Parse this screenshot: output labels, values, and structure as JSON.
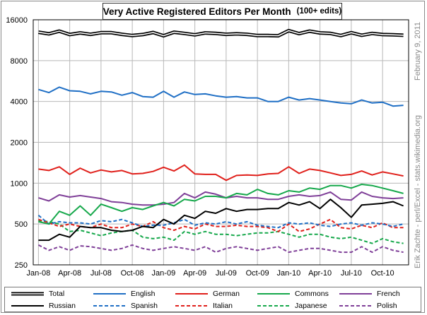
{
  "title": "Very Active Registered Editors  Per Month",
  "subtitle": "(100+ edits)",
  "side_date": "February 9, 2011",
  "credit": "Erik Zachte  -  perl/Excel  -  stats.wikimedia.org",
  "chart_data": {
    "type": "line",
    "yscale": "log",
    "ylim": [
      250,
      16000
    ],
    "y_ticks": [
      250,
      500,
      1000,
      2000,
      4000,
      8000,
      16000
    ],
    "y_tick_labels": [
      "250",
      "500",
      "1000",
      "2000",
      "4000",
      "8000",
      "16000"
    ],
    "x": [
      "Jan-08",
      "Feb-08",
      "Mar-08",
      "Apr-08",
      "May-08",
      "Jun-08",
      "Jul-08",
      "Aug-08",
      "Sep-08",
      "Oct-08",
      "Nov-08",
      "Dec-08",
      "Jan-09",
      "Feb-09",
      "Mar-09",
      "Apr-09",
      "May-09",
      "Jun-09",
      "Jul-09",
      "Aug-09",
      "Sep-09",
      "Oct-09",
      "Nov-09",
      "Dec-09",
      "Jan-10",
      "Feb-10",
      "Mar-10",
      "Apr-10",
      "May-10",
      "Jun-10",
      "Jul-10",
      "Aug-10",
      "Sep-10",
      "Oct-10",
      "Nov-10",
      "Dec-10"
    ],
    "x_tick_labels": [
      "Jan-08",
      "Apr-08",
      "Jul-08",
      "Oct-08",
      "Jan-09",
      "Apr-09",
      "Jul-09",
      "Oct-09",
      "Jan-10",
      "Apr-10",
      "Jul-10",
      "Oct-10"
    ],
    "grid": true,
    "legend_position": "bottom",
    "series": [
      {
        "name": "Total",
        "color": "#000000",
        "style": "double",
        "values": [
          12950,
          12600,
          13200,
          12450,
          12800,
          12500,
          12850,
          12850,
          12500,
          12250,
          12450,
          12900,
          12200,
          12950,
          12700,
          12400,
          12800,
          12700,
          12500,
          12600,
          12500,
          12250,
          12250,
          12200,
          13300,
          12650,
          13200,
          12800,
          12700,
          12250,
          12850,
          12300,
          12700,
          12450,
          12400,
          12300
        ]
      },
      {
        "name": "English",
        "color": "#1f6fc5",
        "style": "solid",
        "values": [
          4900,
          4650,
          5100,
          4800,
          4750,
          4550,
          4750,
          4700,
          4450,
          4650,
          4350,
          4300,
          4750,
          4300,
          4700,
          4500,
          4550,
          4400,
          4300,
          4350,
          4250,
          4250,
          4000,
          4000,
          4300,
          4100,
          4200,
          4100,
          4000,
          3900,
          3850,
          4100,
          3900,
          3950,
          3700,
          3750
        ]
      },
      {
        "name": "German",
        "color": "#e0201b",
        "style": "solid",
        "values": [
          1270,
          1240,
          1320,
          1160,
          1290,
          1190,
          1250,
          1210,
          1240,
          1170,
          1180,
          1220,
          1310,
          1230,
          1360,
          1170,
          1160,
          1160,
          1050,
          1140,
          1150,
          1140,
          1170,
          1180,
          1320,
          1180,
          1270,
          1240,
          1190,
          1140,
          1160,
          1230,
          1150,
          1210,
          1170,
          1130
        ]
      },
      {
        "name": "Commons",
        "color": "#16a84b",
        "style": "solid",
        "values": [
          520,
          500,
          620,
          580,
          680,
          580,
          700,
          660,
          620,
          660,
          640,
          680,
          720,
          680,
          760,
          740,
          800,
          800,
          780,
          840,
          820,
          900,
          840,
          820,
          880,
          860,
          920,
          900,
          960,
          960,
          920,
          980,
          960,
          920,
          880,
          840
        ]
      },
      {
        "name": "French",
        "color": "#7f3f98",
        "style": "solid",
        "values": [
          780,
          740,
          820,
          790,
          810,
          790,
          770,
          730,
          720,
          700,
          690,
          690,
          700,
          720,
          840,
          780,
          860,
          830,
          780,
          800,
          780,
          780,
          760,
          760,
          800,
          820,
          800,
          810,
          860,
          760,
          750,
          860,
          800,
          780,
          770,
          780
        ]
      },
      {
        "name": "Russian",
        "color": "#000000",
        "style": "solid",
        "values": [
          380,
          380,
          420,
          400,
          480,
          470,
          470,
          450,
          440,
          450,
          480,
          470,
          540,
          500,
          580,
          550,
          620,
          600,
          650,
          620,
          640,
          640,
          650,
          650,
          720,
          690,
          730,
          650,
          760,
          660,
          560,
          690,
          700,
          710,
          730,
          680
        ]
      },
      {
        "name": "Spanish",
        "color": "#1f6fc5",
        "style": "dashed",
        "values": [
          580,
          500,
          520,
          510,
          510,
          500,
          530,
          520,
          540,
          510,
          480,
          490,
          490,
          510,
          540,
          490,
          510,
          500,
          520,
          500,
          520,
          490,
          480,
          470,
          510,
          500,
          510,
          490,
          480,
          500,
          510,
          490,
          510,
          500,
          480,
          500
        ]
      },
      {
        "name": "Italian",
        "color": "#e0201b",
        "style": "dashed",
        "values": [
          540,
          510,
          480,
          500,
          480,
          470,
          500,
          470,
          470,
          500,
          480,
          520,
          470,
          450,
          480,
          460,
          500,
          480,
          480,
          490,
          480,
          480,
          470,
          440,
          500,
          440,
          460,
          500,
          540,
          470,
          460,
          490,
          470,
          510,
          470,
          470
        ]
      },
      {
        "name": "Japanese",
        "color": "#16a84b",
        "style": "dashed",
        "values": [
          530,
          520,
          500,
          440,
          450,
          430,
          410,
          430,
          440,
          450,
          400,
          390,
          400,
          380,
          440,
          420,
          440,
          420,
          420,
          410,
          420,
          430,
          430,
          440,
          420,
          400,
          420,
          420,
          400,
          390,
          400,
          380,
          360,
          390,
          370,
          360
        ]
      },
      {
        "name": "Polish",
        "color": "#7f3f98",
        "style": "dashed",
        "values": [
          350,
          320,
          340,
          320,
          345,
          340,
          330,
          320,
          330,
          350,
          330,
          320,
          330,
          340,
          330,
          320,
          340,
          310,
          330,
          340,
          330,
          320,
          330,
          340,
          310,
          320,
          330,
          330,
          320,
          310,
          310,
          340,
          310,
          340,
          320,
          310
        ]
      }
    ]
  }
}
